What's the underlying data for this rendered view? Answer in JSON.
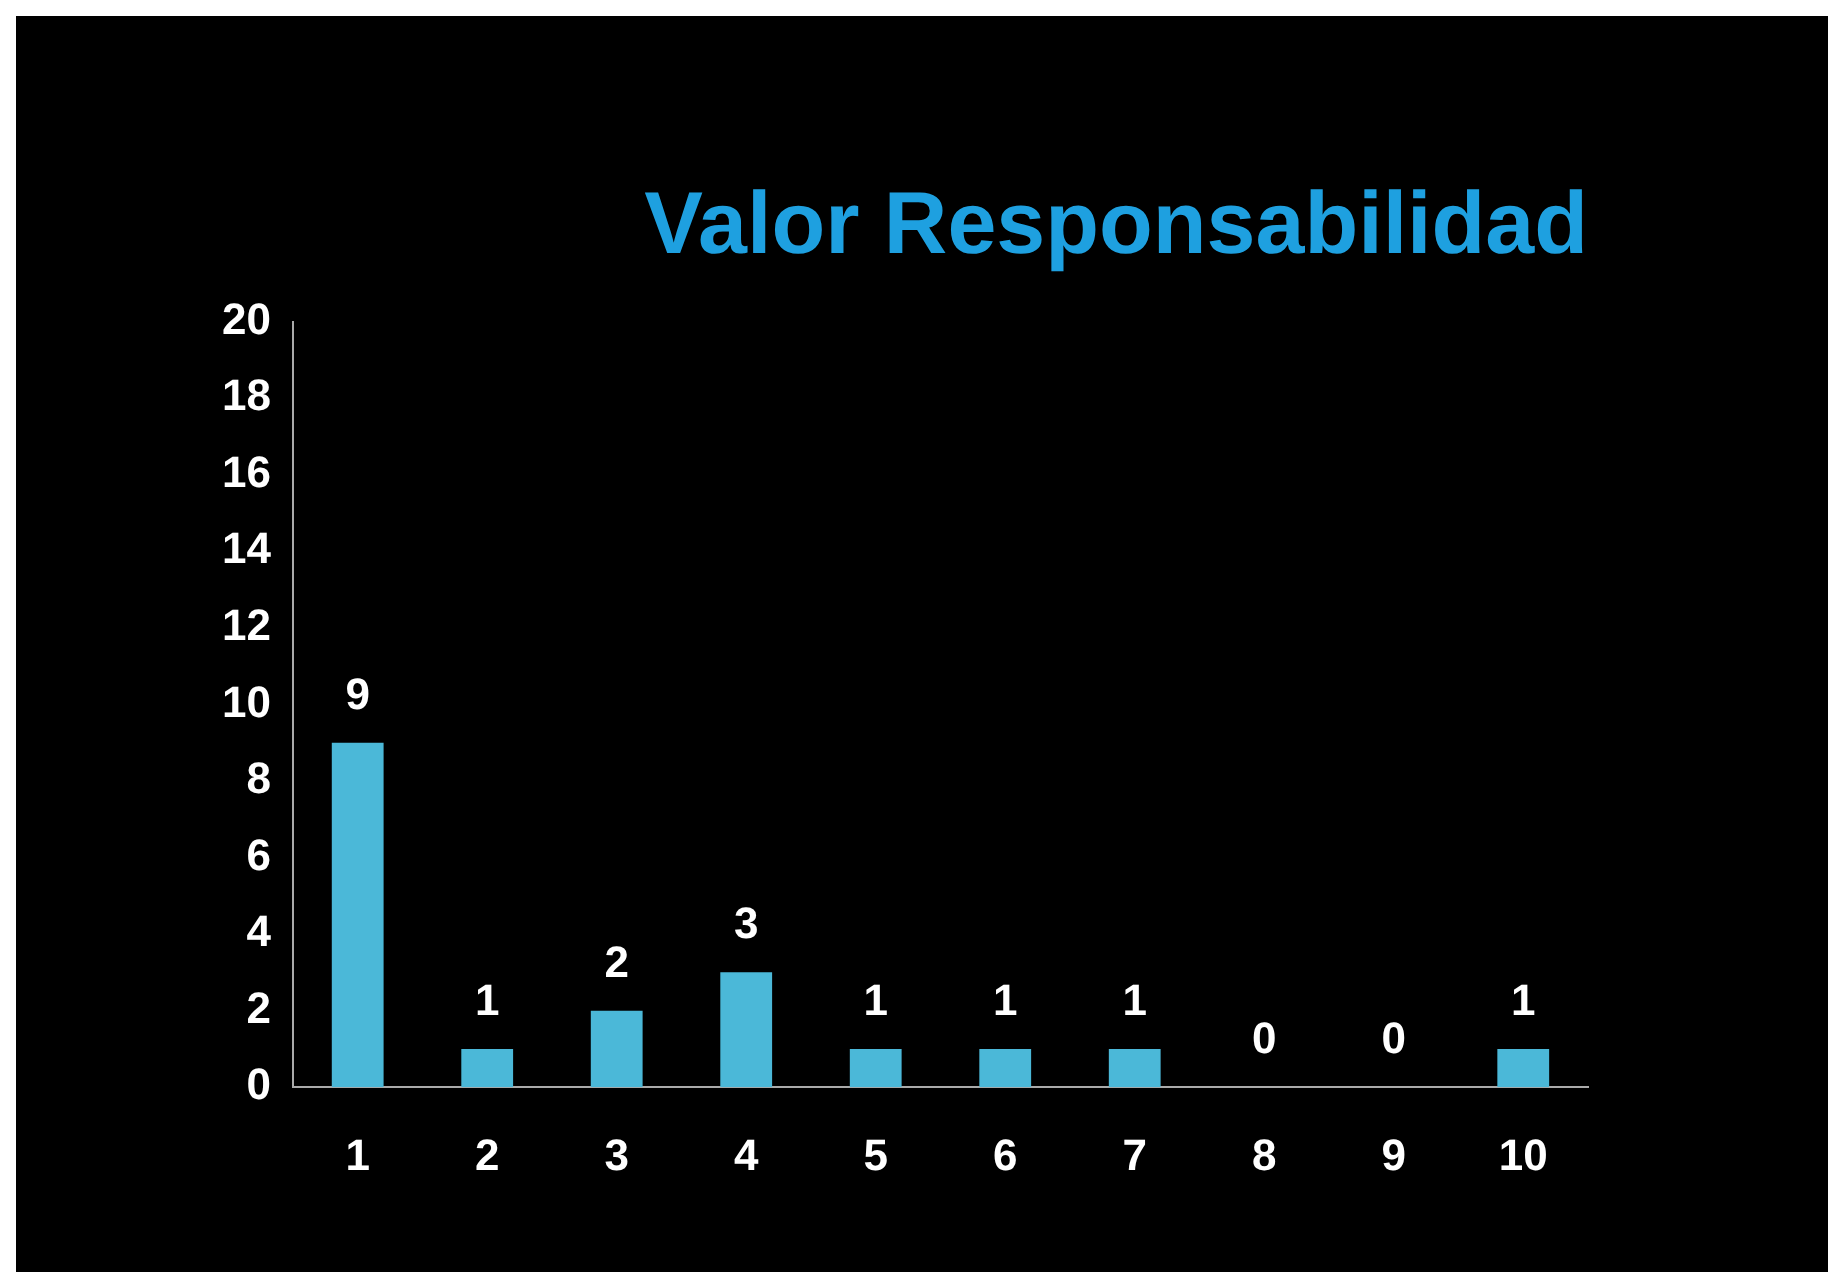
{
  "chart_data": {
    "type": "bar",
    "title": "Valor Responsabilidad",
    "categories": [
      "1",
      "2",
      "3",
      "4",
      "5",
      "6",
      "7",
      "8",
      "9",
      "10"
    ],
    "values": [
      9,
      1,
      2,
      3,
      1,
      1,
      1,
      0,
      0,
      1
    ],
    "color": "#4bb8d8",
    "ylim": [
      0,
      20
    ],
    "yticks": [
      0,
      2,
      4,
      6,
      8,
      10,
      12,
      14,
      16,
      18,
      20
    ],
    "grid": false,
    "legend": false,
    "data_labels": true
  }
}
